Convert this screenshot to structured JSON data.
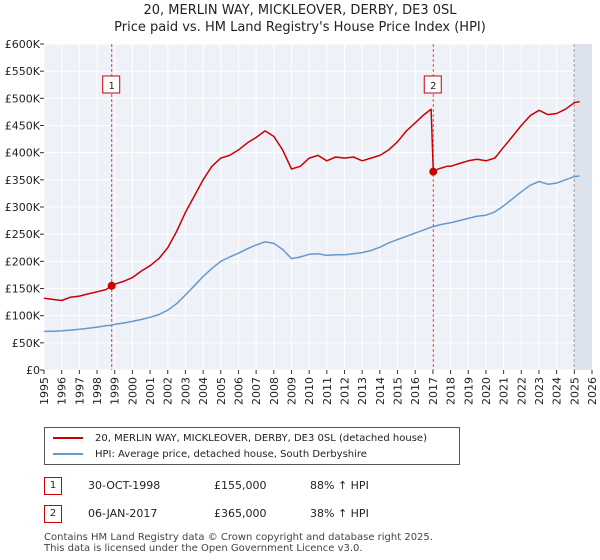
{
  "title_line1": "20, MERLIN WAY, MICKLEOVER, DERBY, DE3 0SL",
  "title_line2": "Price paid vs. HM Land Registry's House Price Index (HPI)",
  "colors": {
    "property": "#cc0000",
    "hpi": "#6699cc",
    "background": "#eef2f8",
    "grid": "#ffffff",
    "sale_line": "#dd4444"
  },
  "legend": {
    "property_label": "20, MERLIN WAY, MICKLEOVER, DERBY, DE3 0SL (detached house)",
    "hpi_label": "HPI: Average price, detached house, South Derbyshire"
  },
  "sales": [
    {
      "id": "1",
      "date": "30-OCT-1998",
      "price": "£155,000",
      "hpi_change": "88% ↑ HPI"
    },
    {
      "id": "2",
      "date": "06-JAN-2017",
      "price": "£365,000",
      "hpi_change": "38% ↑ HPI"
    }
  ],
  "footer_line1": "Contains HM Land Registry data © Crown copyright and database right 2025.",
  "footer_line2": "This data is licensed under the Open Government Licence v3.0.",
  "chart_data": {
    "type": "line",
    "title": "20, MERLIN WAY, MICKLEOVER, DERBY, DE3 0SL — Price paid vs. HM Land Registry's House Price Index (HPI)",
    "xlim": [
      1995,
      2026
    ],
    "ylim": [
      0,
      600000
    ],
    "x_ticks": [
      "1995",
      "1996",
      "1997",
      "1998",
      "1999",
      "2000",
      "2001",
      "2002",
      "2003",
      "2004",
      "2005",
      "2006",
      "2007",
      "2008",
      "2009",
      "2010",
      "2011",
      "2012",
      "2013",
      "2014",
      "2015",
      "2016",
      "2017",
      "2018",
      "2019",
      "2020",
      "2021",
      "2022",
      "2023",
      "2024",
      "2025",
      "2026"
    ],
    "y_ticks": [
      {
        "value": 0,
        "label": "£0"
      },
      {
        "value": 50000,
        "label": "£50K"
      },
      {
        "value": 100000,
        "label": "£100K"
      },
      {
        "value": 150000,
        "label": "£150K"
      },
      {
        "value": 200000,
        "label": "£200K"
      },
      {
        "value": 250000,
        "label": "£250K"
      },
      {
        "value": 300000,
        "label": "£300K"
      },
      {
        "value": 350000,
        "label": "£350K"
      },
      {
        "value": 400000,
        "label": "£400K"
      },
      {
        "value": 450000,
        "label": "£450K"
      },
      {
        "value": 500000,
        "label": "£500K"
      },
      {
        "value": 550000,
        "label": "£550K"
      },
      {
        "value": 600000,
        "label": "£600K"
      }
    ],
    "future_start": 2025.0,
    "sale_markers": [
      {
        "label": "1",
        "x": 1998.83,
        "y": 155000
      },
      {
        "label": "2",
        "x": 2017.02,
        "y": 365000
      }
    ],
    "series": [
      {
        "name": "20, MERLIN WAY, MICKLEOVER, DERBY, DE3 0SL (detached house)",
        "color": "#cc0000",
        "points": [
          [
            1995.0,
            132000
          ],
          [
            1995.5,
            130000
          ],
          [
            1996.0,
            128000
          ],
          [
            1996.5,
            134000
          ],
          [
            1997.0,
            136000
          ],
          [
            1997.5,
            140000
          ],
          [
            1998.0,
            144000
          ],
          [
            1998.5,
            148000
          ],
          [
            1998.83,
            155000
          ],
          [
            1999.0,
            158000
          ],
          [
            1999.5,
            163000
          ],
          [
            2000.0,
            170000
          ],
          [
            2000.5,
            182000
          ],
          [
            2001.0,
            192000
          ],
          [
            2001.5,
            205000
          ],
          [
            2002.0,
            225000
          ],
          [
            2002.5,
            255000
          ],
          [
            2003.0,
            290000
          ],
          [
            2003.5,
            320000
          ],
          [
            2004.0,
            350000
          ],
          [
            2004.5,
            375000
          ],
          [
            2005.0,
            390000
          ],
          [
            2005.5,
            395000
          ],
          [
            2006.0,
            405000
          ],
          [
            2006.5,
            418000
          ],
          [
            2007.0,
            428000
          ],
          [
            2007.5,
            440000
          ],
          [
            2008.0,
            430000
          ],
          [
            2008.5,
            405000
          ],
          [
            2009.0,
            370000
          ],
          [
            2009.5,
            375000
          ],
          [
            2010.0,
            390000
          ],
          [
            2010.5,
            395000
          ],
          [
            2011.0,
            385000
          ],
          [
            2011.5,
            392000
          ],
          [
            2012.0,
            390000
          ],
          [
            2012.5,
            392000
          ],
          [
            2013.0,
            385000
          ],
          [
            2013.5,
            390000
          ],
          [
            2014.0,
            395000
          ],
          [
            2014.5,
            405000
          ],
          [
            2015.0,
            420000
          ],
          [
            2015.5,
            440000
          ],
          [
            2016.0,
            455000
          ],
          [
            2016.5,
            470000
          ],
          [
            2016.9,
            480000
          ],
          [
            2017.02,
            365000
          ],
          [
            2017.3,
            370000
          ],
          [
            2017.8,
            375000
          ],
          [
            2018.0,
            375000
          ],
          [
            2018.5,
            380000
          ],
          [
            2019.0,
            385000
          ],
          [
            2019.5,
            388000
          ],
          [
            2020.0,
            385000
          ],
          [
            2020.5,
            390000
          ],
          [
            2021.0,
            410000
          ],
          [
            2021.5,
            430000
          ],
          [
            2022.0,
            450000
          ],
          [
            2022.5,
            468000
          ],
          [
            2023.0,
            478000
          ],
          [
            2023.5,
            470000
          ],
          [
            2024.0,
            472000
          ],
          [
            2024.5,
            480000
          ],
          [
            2025.0,
            492000
          ],
          [
            2025.3,
            494000
          ]
        ]
      },
      {
        "name": "HPI: Average price, detached house, South Derbyshire",
        "color": "#6699cc",
        "points": [
          [
            1995.0,
            71000
          ],
          [
            1995.5,
            71500
          ],
          [
            1996.0,
            72000
          ],
          [
            1996.5,
            73500
          ],
          [
            1997.0,
            75000
          ],
          [
            1997.5,
            77000
          ],
          [
            1998.0,
            79000
          ],
          [
            1998.5,
            81500
          ],
          [
            1998.83,
            82500
          ],
          [
            1999.0,
            84000
          ],
          [
            1999.5,
            86500
          ],
          [
            2000.0,
            89500
          ],
          [
            2000.5,
            93000
          ],
          [
            2001.0,
            97000
          ],
          [
            2001.5,
            102000
          ],
          [
            2002.0,
            110000
          ],
          [
            2002.5,
            122000
          ],
          [
            2003.0,
            138000
          ],
          [
            2003.5,
            155000
          ],
          [
            2004.0,
            172000
          ],
          [
            2004.5,
            187000
          ],
          [
            2005.0,
            200000
          ],
          [
            2005.5,
            208000
          ],
          [
            2006.0,
            215000
          ],
          [
            2006.5,
            223000
          ],
          [
            2007.0,
            230000
          ],
          [
            2007.5,
            236000
          ],
          [
            2008.0,
            233000
          ],
          [
            2008.5,
            222000
          ],
          [
            2009.0,
            205000
          ],
          [
            2009.5,
            208000
          ],
          [
            2010.0,
            213000
          ],
          [
            2010.5,
            214000
          ],
          [
            2011.0,
            211000
          ],
          [
            2011.5,
            212000
          ],
          [
            2012.0,
            212000
          ],
          [
            2012.5,
            214000
          ],
          [
            2013.0,
            216000
          ],
          [
            2013.5,
            220000
          ],
          [
            2014.0,
            226000
          ],
          [
            2014.5,
            234000
          ],
          [
            2015.0,
            240000
          ],
          [
            2015.5,
            246000
          ],
          [
            2016.0,
            252000
          ],
          [
            2016.5,
            258000
          ],
          [
            2017.0,
            264000
          ],
          [
            2017.5,
            268000
          ],
          [
            2018.0,
            271000
          ],
          [
            2018.5,
            275000
          ],
          [
            2019.0,
            279000
          ],
          [
            2019.5,
            283000
          ],
          [
            2020.0,
            285000
          ],
          [
            2020.5,
            291000
          ],
          [
            2021.0,
            302000
          ],
          [
            2021.5,
            315000
          ],
          [
            2022.0,
            328000
          ],
          [
            2022.5,
            340000
          ],
          [
            2023.0,
            347000
          ],
          [
            2023.5,
            342000
          ],
          [
            2024.0,
            344000
          ],
          [
            2024.5,
            350000
          ],
          [
            2025.0,
            356000
          ],
          [
            2025.3,
            357000
          ]
        ]
      }
    ]
  }
}
